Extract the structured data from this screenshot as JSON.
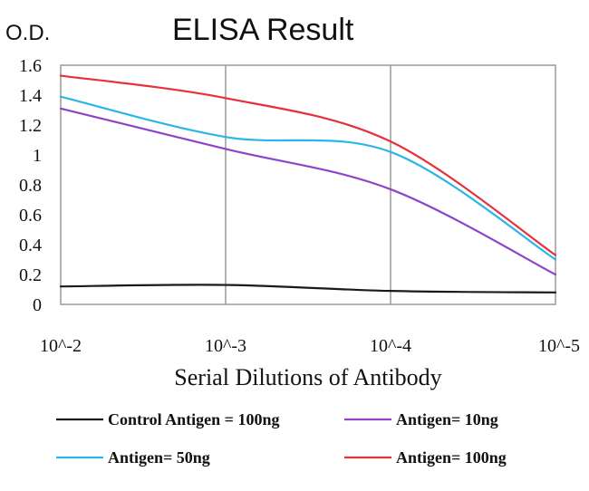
{
  "chart_data": {
    "type": "line",
    "title": "ELISA Result",
    "ylabel": "O.D.",
    "xlabel": "Serial Dilutions of Antibody",
    "categories": [
      "10^-2",
      "10^-3",
      "10^-4",
      "10^-5"
    ],
    "ylim": [
      0,
      1.6
    ],
    "yticks": [
      "0",
      "0.2",
      "0.4",
      "0.6",
      "0.8",
      "1",
      "1.2",
      "1.4",
      "1.6"
    ],
    "grid": "vertical",
    "legend": "bottom",
    "series": [
      {
        "name": "Control Antigen = 100ng",
        "color": "#1a1a1a",
        "values": [
          0.12,
          0.13,
          0.09,
          0.08
        ]
      },
      {
        "name": "Antigen= 10ng",
        "color": "#8e44c8",
        "values": [
          1.31,
          1.04,
          0.77,
          0.2
        ]
      },
      {
        "name": "Antigen= 50ng",
        "color": "#2bb6e8",
        "values": [
          1.39,
          1.12,
          1.02,
          0.3
        ]
      },
      {
        "name": "Antigen= 100ng",
        "color": "#e8303a",
        "values": [
          1.53,
          1.38,
          1.09,
          0.33
        ]
      }
    ]
  }
}
